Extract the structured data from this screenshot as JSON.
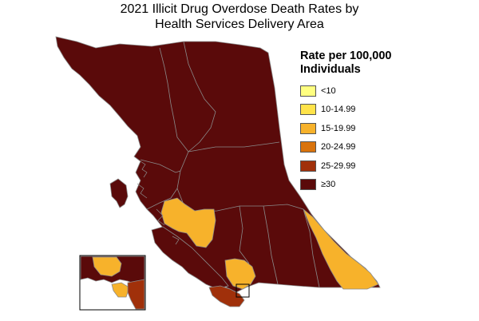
{
  "title": {
    "line1": "2021 Illicit Drug Overdose Death Rates by",
    "line2": "Health Services Delivery Area"
  },
  "legend": {
    "title_line1": "Rate per 100,000",
    "title_line2": "Individuals",
    "items": [
      {
        "label": "<10",
        "color": "#ffff80"
      },
      {
        "label": "10-14.99",
        "color": "#ffe34a"
      },
      {
        "label": "15-19.99",
        "color": "#f7b22b"
      },
      {
        "label": "20-24.99",
        "color": "#d9730c"
      },
      {
        "label": "25-29.99",
        "color": "#a0300a"
      },
      {
        "label": "≥30",
        "color": "#5a0a0a"
      }
    ]
  },
  "map": {
    "base_color": "#5a0a0a",
    "boundary_color": "#8a8a8a",
    "regions": [
      {
        "id": "central-coast",
        "rate_class": "15-19.99",
        "color": "#f7b22b"
      },
      {
        "id": "east-kootenay",
        "rate_class": "15-19.99",
        "color": "#f7b22b"
      },
      {
        "id": "fraser-south",
        "rate_class": "15-19.99",
        "color": "#f7b22b"
      },
      {
        "id": "north-shore",
        "rate_class": "15-19.99",
        "color": "#f7b22b"
      },
      {
        "id": "south-vancouver-island",
        "rate_class": "25-29.99",
        "color": "#a0300a"
      }
    ]
  }
}
